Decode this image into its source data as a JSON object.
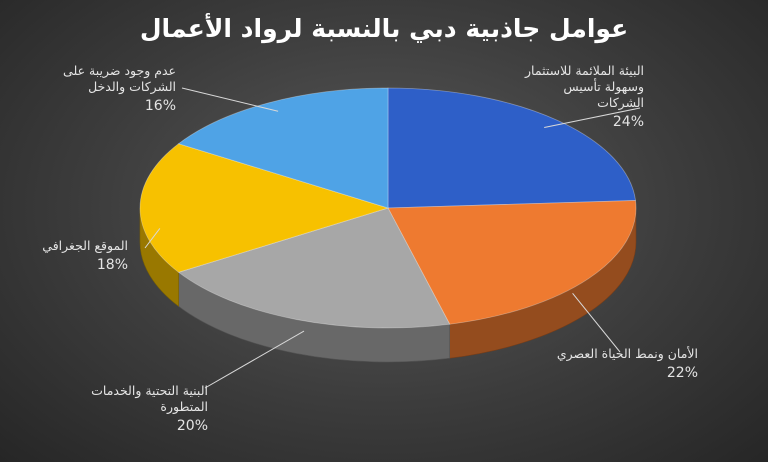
{
  "chart_data": {
    "type": "pie",
    "title": "عوامل جاذبية دبي  بالنسبة لرواد الأعمال",
    "slices": [
      {
        "label": "البيئة الملائمة للاستثمار وسهولة تأسيس الشركات",
        "value": 24,
        "value_label": "24% ",
        "color": "#2e5fc8"
      },
      {
        "label": "الأمان ونمط الحياة العصري",
        "value": 22,
        "value_label": "22% ",
        "color": "#ee7a30"
      },
      {
        "label": "البنية التحتية والخدمات المتطورة",
        "value": 20,
        "value_label": "20% ",
        "color": "#a7a7a7"
      },
      {
        "label": "الموقع الجغرافي",
        "value": 18,
        "value_label": "18% ",
        "color": "#f7c100"
      },
      {
        "label": "عدم وجود ضريبة على الشركات والدخل",
        "value": 16,
        "value_label": "16% ",
        "color": "#4fa3e6"
      }
    ]
  }
}
